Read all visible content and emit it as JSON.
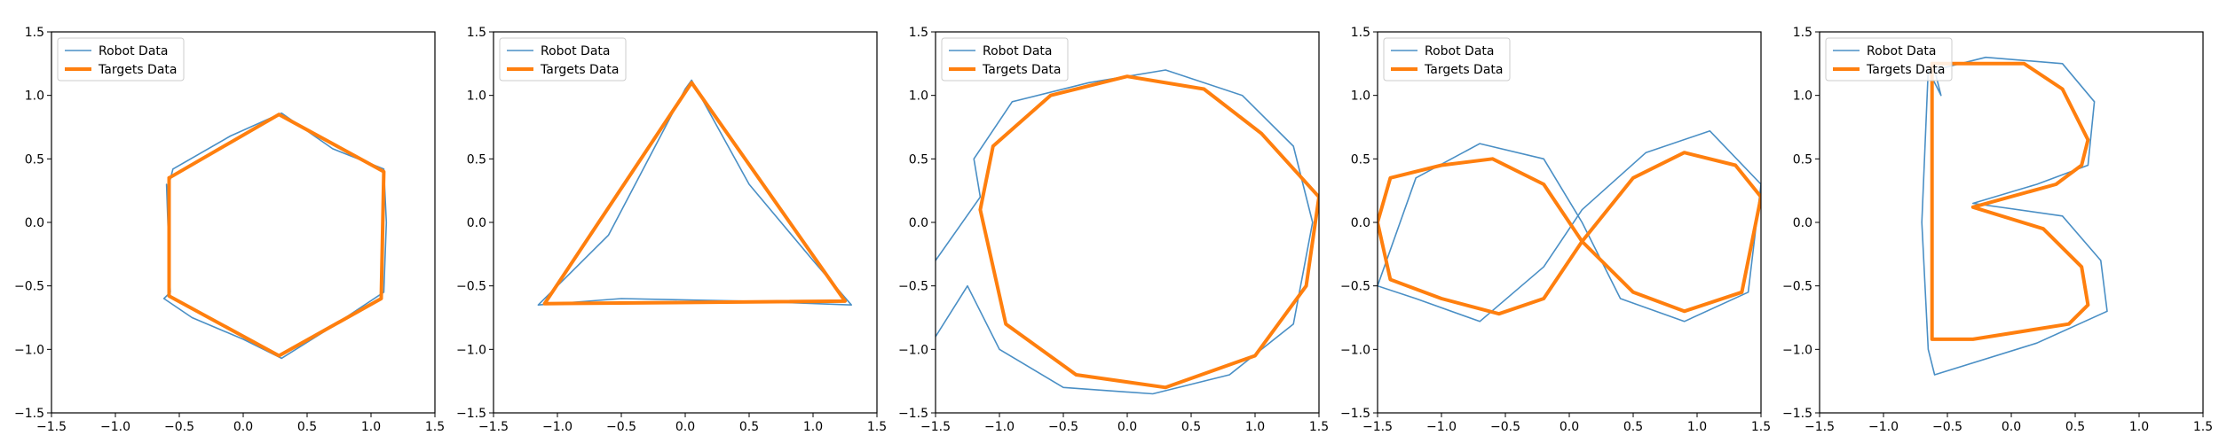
{
  "colors": {
    "robot": "#4a8fc5",
    "target": "#ff7f0e",
    "axes": "#000000",
    "background": "#ffffff"
  },
  "chart_data": [
    {
      "type": "line",
      "shape": "hexagon",
      "title": "",
      "xlabel": "",
      "ylabel": "",
      "xlim": [
        -1.5,
        1.5
      ],
      "ylim": [
        -1.5,
        1.5
      ],
      "xticks": [
        "−1.5",
        "−1.0",
        "−0.5",
        "0.0",
        "0.5",
        "1.0",
        "1.5"
      ],
      "yticks": [
        "−1.5",
        "−1.0",
        "−0.5",
        "0.0",
        "0.5",
        "1.0",
        "1.5"
      ],
      "grid": false,
      "legend_position": "upper left",
      "series": [
        {
          "name": "Robot Data",
          "style": "thin",
          "x": [
            -0.6,
            -0.57,
            -0.62,
            -0.4,
            0.0,
            0.3,
            0.65,
            1.1,
            1.12,
            1.1,
            0.7,
            0.3,
            -0.1,
            -0.55,
            -0.58
          ],
          "y": [
            0.3,
            -0.55,
            -0.6,
            -0.75,
            -0.92,
            -1.07,
            -0.85,
            -0.55,
            0.0,
            0.42,
            0.58,
            0.86,
            0.68,
            0.42,
            0.3
          ]
        },
        {
          "name": "Targets Data",
          "style": "thick",
          "x": [
            -0.58,
            -0.58,
            0.28,
            1.08,
            1.1,
            0.28,
            -0.58
          ],
          "y": [
            0.35,
            -0.58,
            -1.05,
            -0.6,
            0.4,
            0.85,
            0.35
          ]
        }
      ]
    },
    {
      "type": "line",
      "shape": "triangle",
      "title": "",
      "xlabel": "",
      "ylabel": "",
      "xlim": [
        -1.5,
        1.5
      ],
      "ylim": [
        -1.5,
        1.5
      ],
      "xticks": [
        "−1.5",
        "−1.0",
        "−0.5",
        "0.0",
        "0.5",
        "1.0",
        "1.5"
      ],
      "yticks": [
        "−1.5",
        "−1.0",
        "−0.5",
        "0.0",
        "0.5",
        "1.0",
        "1.5"
      ],
      "grid": false,
      "legend_position": "upper left",
      "series": [
        {
          "name": "Robot Data",
          "style": "thin",
          "x": [
            -1.15,
            -0.6,
            0.0,
            0.05,
            0.5,
            1.0,
            1.3,
            0.5,
            -0.5,
            -1.15
          ],
          "y": [
            -0.65,
            -0.1,
            1.05,
            1.12,
            0.3,
            -0.3,
            -0.65,
            -0.62,
            -0.6,
            -0.65
          ]
        },
        {
          "name": "Targets Data",
          "style": "thick",
          "x": [
            -1.1,
            0.05,
            1.25,
            -1.1
          ],
          "y": [
            -0.64,
            1.1,
            -0.62,
            -0.64
          ]
        }
      ]
    },
    {
      "type": "line",
      "shape": "circle",
      "title": "",
      "xlabel": "",
      "ylabel": "",
      "xlim": [
        -1.5,
        1.5
      ],
      "ylim": [
        -1.5,
        1.5
      ],
      "xticks": [
        "−1.5",
        "−1.0",
        "−0.5",
        "0.0",
        "0.5",
        "1.0",
        "1.5"
      ],
      "yticks": [
        "−1.5",
        "−1.0",
        "−0.5",
        "0.0",
        "0.5",
        "1.0",
        "1.5"
      ],
      "grid": false,
      "legend_position": "upper left",
      "series": [
        {
          "name": "Robot Data",
          "style": "thin",
          "x": [
            -1.5,
            -1.15,
            -1.2,
            -0.9,
            -0.3,
            0.3,
            0.9,
            1.3,
            1.45,
            1.3,
            0.8,
            0.2,
            -0.5,
            -1.0,
            -1.25,
            -1.5
          ],
          "y": [
            -0.3,
            0.2,
            0.5,
            0.95,
            1.1,
            1.2,
            1.0,
            0.6,
            0.0,
            -0.8,
            -1.2,
            -1.35,
            -1.3,
            -1.0,
            -0.5,
            -0.9
          ]
        },
        {
          "name": "Targets Data",
          "style": "thick",
          "x": [
            -1.15,
            -1.05,
            -0.6,
            0.0,
            0.6,
            1.05,
            1.5,
            1.4,
            1.0,
            0.3,
            -0.4,
            -0.95,
            -1.15
          ],
          "y": [
            0.1,
            0.6,
            1.0,
            1.15,
            1.05,
            0.7,
            0.2,
            -0.5,
            -1.05,
            -1.3,
            -1.2,
            -0.8,
            0.1
          ]
        }
      ]
    },
    {
      "type": "line",
      "shape": "infinity",
      "title": "",
      "xlabel": "",
      "ylabel": "",
      "xlim": [
        -1.5,
        1.5
      ],
      "ylim": [
        -1.5,
        1.5
      ],
      "xticks": [
        "−1.5",
        "−1.0",
        "−0.5",
        "0.0",
        "0.5",
        "1.0",
        "1.5"
      ],
      "yticks": [
        "−1.5",
        "−1.0",
        "−0.5",
        "0.0",
        "0.5",
        "1.0",
        "1.5"
      ],
      "grid": false,
      "legend_position": "upper left",
      "series": [
        {
          "name": "Robot Data",
          "style": "thin",
          "x": [
            -1.5,
            -1.2,
            -0.7,
            -0.2,
            0.1,
            0.4,
            0.9,
            1.4,
            1.5,
            1.1,
            0.6,
            0.1,
            -0.2,
            -0.7,
            -1.2,
            -1.5
          ],
          "y": [
            -0.5,
            0.35,
            0.62,
            0.5,
            0.0,
            -0.6,
            -0.78,
            -0.55,
            0.3,
            0.72,
            0.55,
            0.1,
            -0.35,
            -0.78,
            -0.6,
            -0.5
          ]
        },
        {
          "name": "Targets Data",
          "style": "thick",
          "x": [
            -1.5,
            -1.4,
            -1.0,
            -0.6,
            -0.2,
            0.1,
            0.5,
            0.9,
            1.3,
            1.5,
            1.35,
            0.9,
            0.5,
            0.1,
            -0.2,
            -0.55,
            -1.0,
            -1.4,
            -1.5
          ],
          "y": [
            0.0,
            0.35,
            0.45,
            0.5,
            0.3,
            -0.15,
            0.35,
            0.55,
            0.45,
            0.2,
            -0.55,
            -0.7,
            -0.55,
            -0.15,
            -0.6,
            -0.72,
            -0.6,
            -0.45,
            0.0
          ]
        }
      ]
    },
    {
      "type": "line",
      "shape": "letter B",
      "title": "",
      "xlabel": "",
      "ylabel": "",
      "xlim": [
        -1.5,
        1.5
      ],
      "ylim": [
        -1.5,
        1.5
      ],
      "xticks": [
        "−1.5",
        "−1.0",
        "−0.5",
        "0.0",
        "0.5",
        "1.0",
        "1.5"
      ],
      "yticks": [
        "−1.5",
        "−1.0",
        "−0.5",
        "0.0",
        "0.5",
        "1.0",
        "1.5"
      ],
      "grid": false,
      "legend_position": "upper left",
      "series": [
        {
          "name": "Robot Data",
          "style": "thin",
          "x": [
            -0.65,
            -0.7,
            -0.65,
            -0.6,
            0.2,
            0.75,
            0.7,
            0.4,
            -0.3,
            0.2,
            0.6,
            0.65,
            0.4,
            -0.2,
            -0.6,
            -0.55,
            -0.65
          ],
          "y": [
            1.2,
            0.0,
            -1.0,
            -1.2,
            -0.95,
            -0.7,
            -0.3,
            0.05,
            0.15,
            0.3,
            0.45,
            0.95,
            1.25,
            1.3,
            1.2,
            1.0,
            1.2
          ]
        },
        {
          "name": "Targets Data",
          "style": "thick",
          "x": [
            -0.62,
            0.1,
            0.4,
            0.6,
            0.55,
            0.35,
            -0.3,
            0.25,
            0.55,
            0.6,
            0.45,
            -0.3,
            -0.62,
            -0.62
          ],
          "y": [
            1.25,
            1.25,
            1.05,
            0.65,
            0.45,
            0.3,
            0.12,
            -0.05,
            -0.35,
            -0.65,
            -0.8,
            -0.92,
            -0.92,
            1.25
          ]
        }
      ]
    }
  ]
}
